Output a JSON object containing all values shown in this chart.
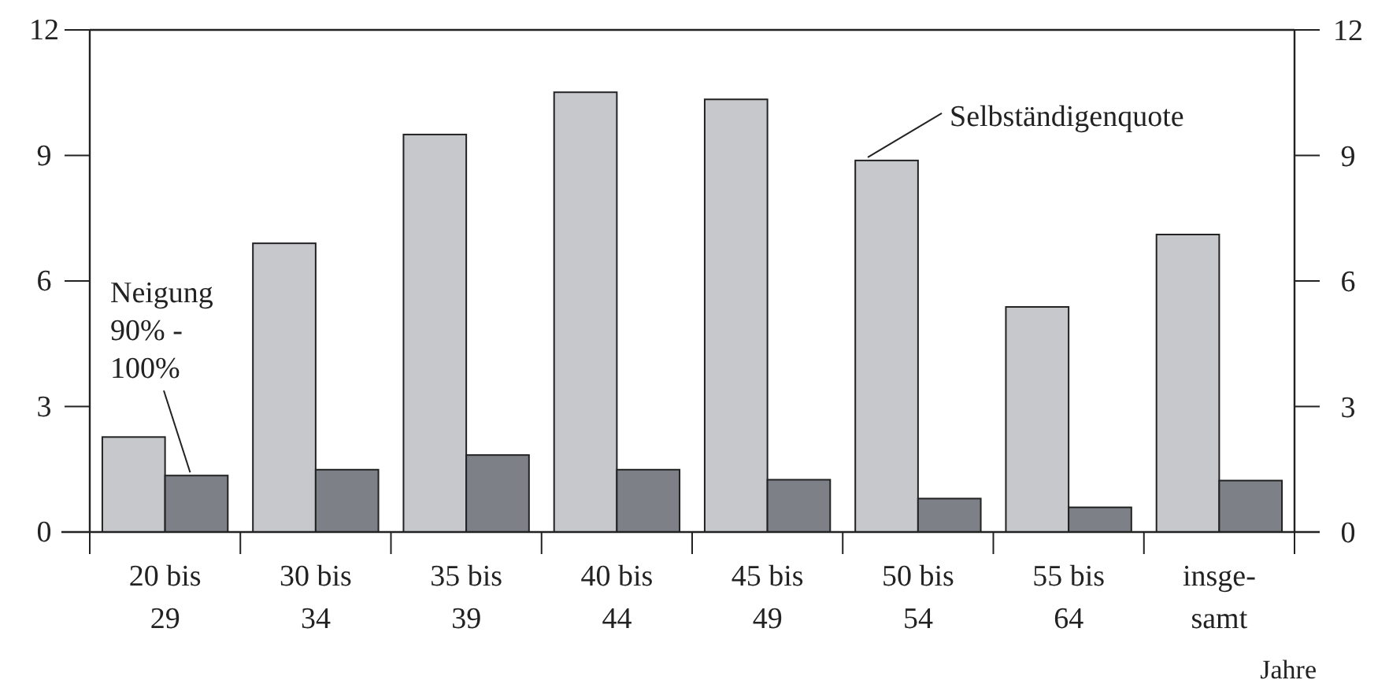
{
  "chart_data": {
    "type": "bar",
    "xlabel": "Jahre",
    "categories": [
      "20 bis\n29",
      "30 bis\n34",
      "35 bis\n39",
      "40 bis\n44",
      "45 bis\n49",
      "50 bis\n54",
      "55 bis\n64",
      "insge-\nsamt"
    ],
    "series": [
      {
        "color": "#c6c8cc",
        "values": [
          2.27,
          6.9,
          9.5,
          10.51,
          10.34,
          8.88,
          5.38,
          7.11
        ]
      },
      {
        "color": "#7d8087",
        "values": [
          1.35,
          1.49,
          1.84,
          1.49,
          1.25,
          0.8,
          0.59,
          1.23
        ]
      }
    ],
    "annotations": [
      {
        "text": "Selbständigenquote",
        "x": "50 bis\n54",
        "y": 8.88
      },
      {
        "text": "Neigung 90% - 100%",
        "x": "20 bis\n29",
        "y": 1.35
      }
    ],
    "ylim": [
      0,
      12
    ],
    "yticks": [
      0,
      3,
      6,
      9,
      12
    ],
    "y2lim": [
      0,
      12
    ],
    "y2ticks": [
      0,
      3,
      6,
      9,
      12
    ]
  }
}
